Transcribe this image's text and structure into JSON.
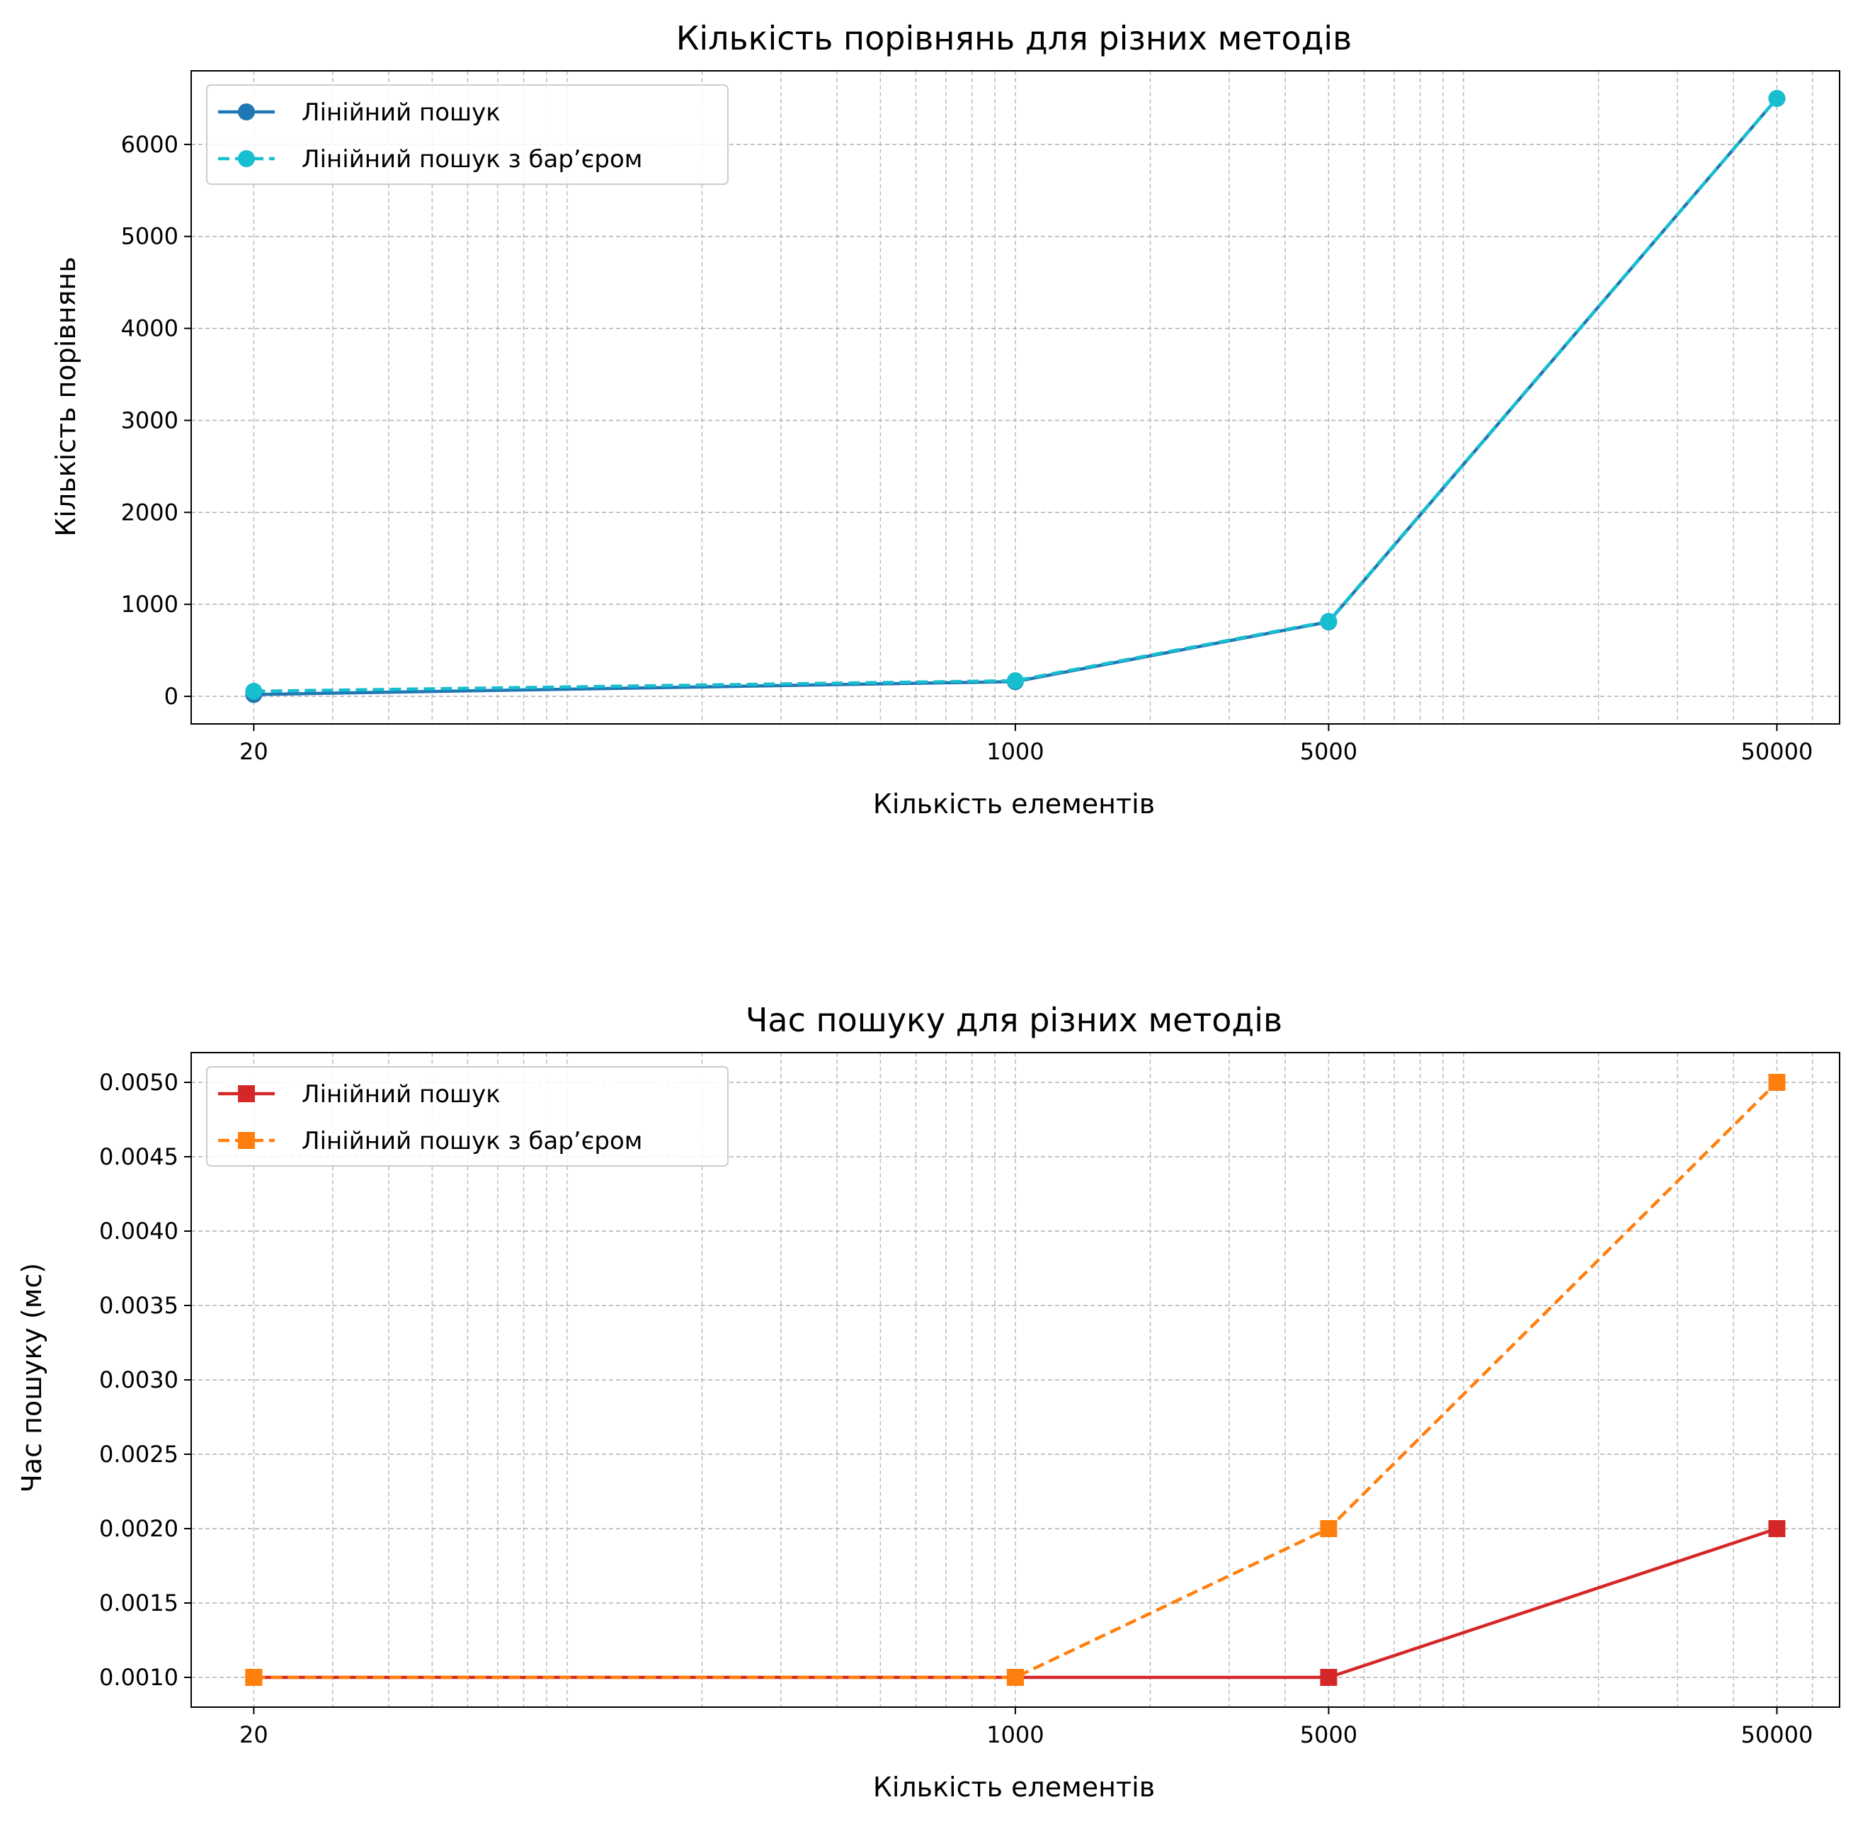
{
  "colors": {
    "linear_compare": "#1f77b4",
    "barrier_compare": "#17becf",
    "linear_time": "#d62728",
    "barrier_time": "#ff7f0e",
    "grid": "#b0b0b0"
  },
  "chart_data": [
    {
      "type": "line",
      "title": "Кількість порівнянь для різних методів",
      "xlabel": "Кількість елементів",
      "ylabel": "Кількість порівнянь",
      "xscale": "log",
      "xlim": [
        14.5,
        69000
      ],
      "ylim": [
        -300,
        6800
      ],
      "xticks": [
        20,
        1000,
        5000,
        50000
      ],
      "xtick_labels": [
        "20",
        "1000",
        "5000",
        "50000"
      ],
      "yticks": [
        0,
        1000,
        2000,
        3000,
        4000,
        5000,
        6000
      ],
      "ytick_labels": [
        "0",
        "1000",
        "2000",
        "3000",
        "4000",
        "5000",
        "6000"
      ],
      "grid": true,
      "legend_position": "upper-left",
      "x": [
        20,
        1000,
        5000,
        50000
      ],
      "series": [
        {
          "name": "Лінійний пошук",
          "values": [
            20,
            160,
            810,
            6500
          ],
          "color": "#1f77b4",
          "dash": "solid",
          "marker": "circle"
        },
        {
          "name": "Лінійний пошук з бар’єром",
          "values": [
            55,
            170,
            815,
            6500
          ],
          "color": "#17becf",
          "dash": "dashed",
          "marker": "circle"
        }
      ]
    },
    {
      "type": "line",
      "title": "Час пошуку для різних методів",
      "xlabel": "Кількість елементів",
      "ylabel": "Час пошуку (мс)",
      "xscale": "log",
      "xlim": [
        14.5,
        69000
      ],
      "ylim": [
        0.0008,
        0.0052
      ],
      "xticks": [
        20,
        1000,
        5000,
        50000
      ],
      "xtick_labels": [
        "20",
        "1000",
        "5000",
        "50000"
      ],
      "yticks": [
        0.001,
        0.0015,
        0.002,
        0.0025,
        0.003,
        0.0035,
        0.004,
        0.0045,
        0.005
      ],
      "ytick_labels": [
        "0.0010",
        "0.0015",
        "0.0020",
        "0.0025",
        "0.0030",
        "0.0035",
        "0.0040",
        "0.0045",
        "0.0050"
      ],
      "grid": true,
      "legend_position": "upper-left",
      "x": [
        20,
        1000,
        5000,
        50000
      ],
      "series": [
        {
          "name": "Лінійний пошук",
          "values": [
            0.001,
            0.001,
            0.001,
            0.002
          ],
          "color": "#d62728",
          "dash": "solid",
          "marker": "square"
        },
        {
          "name": "Лінійний пошук з бар’єром",
          "values": [
            0.001,
            0.001,
            0.002,
            0.005
          ],
          "color": "#ff7f0e",
          "dash": "dashed",
          "marker": "square"
        }
      ]
    }
  ]
}
